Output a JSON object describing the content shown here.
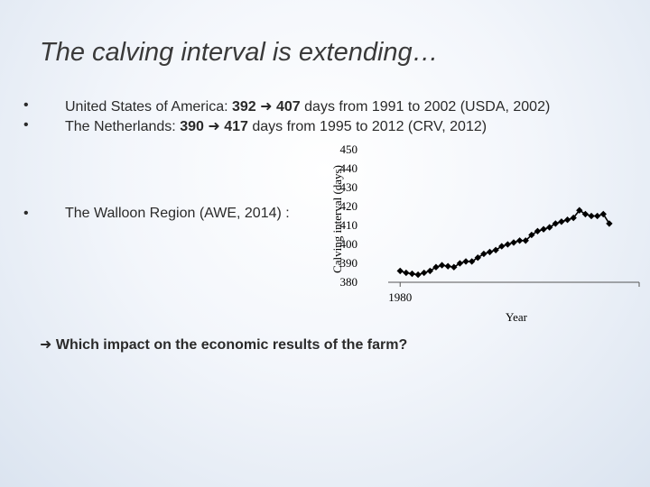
{
  "slide": {
    "title": "The calving interval is extending…",
    "bullets": [
      {
        "dot": "•",
        "pre": "United States of America: ",
        "a": "392",
        "arrow": "➜",
        "b": "407",
        "post": " days  from 1991 to 2002 (USDA, 2002)"
      },
      {
        "dot": "•",
        "pre": "The Netherlands: ",
        "a": "390",
        "arrow": "➜",
        "b": "417",
        "post": " days from 1995 to 2012 (CRV, 2012)"
      },
      {
        "dot": "•",
        "pre": "The Walloon Region (AWE, 2014) :",
        "a": "",
        "arrow": "",
        "b": "",
        "post": ""
      }
    ],
    "question": {
      "arrow": "➜",
      "text": "Which impact on the economic results of the farm?"
    }
  },
  "chart_data": {
    "type": "line",
    "ylabel": "Calving interval (days)",
    "xlabel": "Year",
    "ylim": [
      380,
      450
    ],
    "yticks": [
      380,
      390,
      400,
      410,
      420,
      430,
      440,
      450
    ],
    "xticks": [
      {
        "value": 1980,
        "label": "1980"
      }
    ],
    "xlim": [
      1978,
      2020
    ],
    "x": [
      1980,
      1981,
      1982,
      1983,
      1984,
      1985,
      1986,
      1987,
      1988,
      1989,
      1990,
      1991,
      1992,
      1993,
      1994,
      1995,
      1996,
      1997,
      1998,
      1999,
      2000,
      2001,
      2002,
      2003,
      2004,
      2005,
      2006,
      2007,
      2008,
      2009,
      2010,
      2011,
      2012,
      2013,
      2014,
      2015,
      2016,
      2017,
      2018,
      2019,
      2020
    ],
    "series": [
      {
        "values": [
          386,
          385,
          384.5,
          384,
          385,
          386,
          388,
          389,
          388.5,
          388,
          390,
          391,
          391,
          393,
          395,
          396,
          397,
          399,
          400,
          401,
          402,
          402,
          405,
          407,
          408,
          409,
          411,
          412,
          413,
          414,
          418,
          416,
          415,
          415,
          416,
          411,
          null,
          null,
          null,
          null,
          null
        ],
        "color": "#000000"
      }
    ],
    "grid": false
  }
}
